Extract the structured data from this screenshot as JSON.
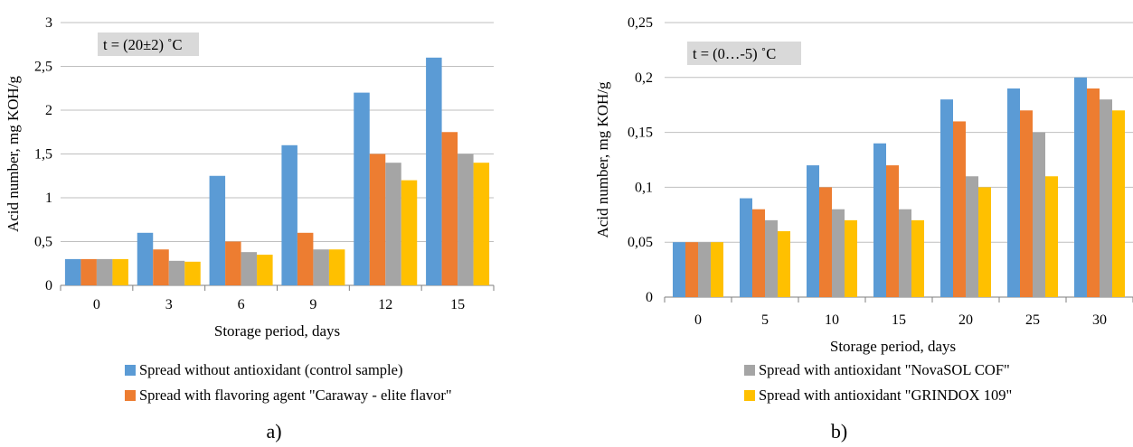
{
  "legend": [
    "Spread without antioxidant (control sample)",
    "Spread with flavoring agent \"Caraway - elite flavor\"",
    "Spread with antioxidant \"NovaSOL COF\"",
    "Spread with antioxidant \"GRINDOX 109\""
  ],
  "colors": {
    "control": "#5b9bd5",
    "caraway": "#ed7d31",
    "novasol": "#a5a5a5",
    "grindox": "#ffc000",
    "annotation_bg": "#d9d9d9",
    "gridline": "#bfbfbf"
  },
  "chart_data": [
    {
      "type": "bar",
      "panel_label": "a)",
      "annotation": "t = (20±2) ˚C",
      "xlabel": "Storage period, days",
      "ylabel": "Acid number, mg KOH/g",
      "categories": [
        "0",
        "3",
        "6",
        "9",
        "12",
        "15"
      ],
      "ylim": [
        0,
        3
      ],
      "yticks": [
        "0",
        "0,5",
        "1",
        "1,5",
        "2",
        "2,5",
        "3"
      ],
      "grid": true,
      "legend_position": "bottom",
      "series": [
        {
          "name": "Spread without antioxidant (control sample)",
          "values": [
            0.3,
            0.6,
            1.25,
            1.6,
            2.2,
            2.6
          ]
        },
        {
          "name": "Spread with flavoring agent \"Caraway - elite flavor\"",
          "values": [
            0.3,
            0.41,
            0.5,
            0.6,
            1.5,
            1.75
          ]
        },
        {
          "name": "Spread with antioxidant \"NovaSOL COF\"",
          "values": [
            0.3,
            0.28,
            0.38,
            0.41,
            1.4,
            1.5
          ]
        },
        {
          "name": "Spread with antioxidant \"GRINDOX 109\"",
          "values": [
            0.3,
            0.27,
            0.35,
            0.41,
            1.2,
            1.4
          ]
        }
      ]
    },
    {
      "type": "bar",
      "panel_label": "b)",
      "annotation": "t = (0…-5) ˚C",
      "xlabel": "Storage period, days",
      "ylabel": "Acid number, mg KOH/g",
      "categories": [
        "0",
        "5",
        "10",
        "15",
        "20",
        "25",
        "30"
      ],
      "ylim": [
        0,
        0.25
      ],
      "yticks": [
        "0",
        "0,05",
        "0,1",
        "0,15",
        "0,2",
        "0,25"
      ],
      "grid": true,
      "legend_position": "bottom",
      "series": [
        {
          "name": "Spread without antioxidant (control sample)",
          "values": [
            0.05,
            0.09,
            0.12,
            0.14,
            0.18,
            0.19,
            0.2
          ]
        },
        {
          "name": "Spread with flavoring agent \"Caraway - elite flavor\"",
          "values": [
            0.05,
            0.08,
            0.1,
            0.12,
            0.16,
            0.17,
            0.19
          ]
        },
        {
          "name": "Spread with antioxidant \"NovaSOL COF\"",
          "values": [
            0.05,
            0.07,
            0.08,
            0.08,
            0.11,
            0.15,
            0.18
          ]
        },
        {
          "name": "Spread with antioxidant \"GRINDOX 109\"",
          "values": [
            0.05,
            0.06,
            0.07,
            0.07,
            0.1,
            0.11,
            0.17
          ]
        }
      ]
    }
  ]
}
